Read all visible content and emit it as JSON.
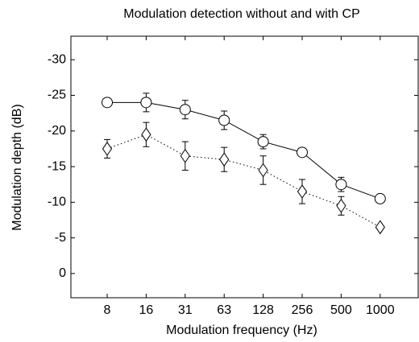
{
  "chart_data": {
    "type": "line",
    "title": "Modulation detection without and with CP",
    "xlabel": "Modulation frequency (Hz)",
    "ylabel": "Modulation depth (dB)",
    "categories": [
      "8",
      "16",
      "31",
      "63",
      "128",
      "256",
      "500",
      "1000"
    ],
    "series": [
      {
        "color": "#000000",
        "line_style": "solid",
        "marker": "circle",
        "values": [
          -24,
          -24,
          -23,
          -21.5,
          -18.5,
          -17,
          -12.5,
          -10.5
        ],
        "errors": [
          0,
          1.3,
          1.3,
          1.3,
          1,
          0,
          1,
          0
        ]
      },
      {
        "color": "#000000",
        "line_style": "dotted",
        "marker": "diamond",
        "values": [
          -17.5,
          -19.5,
          -16.5,
          -16,
          -14.5,
          -11.5,
          -9.5,
          -6.5
        ],
        "errors": [
          1.3,
          1.7,
          2,
          1.7,
          2,
          1.7,
          1.3,
          0
        ]
      }
    ],
    "ylim": [
      -33.3,
      3.4
    ],
    "y_reversed": true,
    "yticks": [
      -30,
      -25,
      -20,
      -15,
      -10,
      -5,
      0
    ]
  }
}
